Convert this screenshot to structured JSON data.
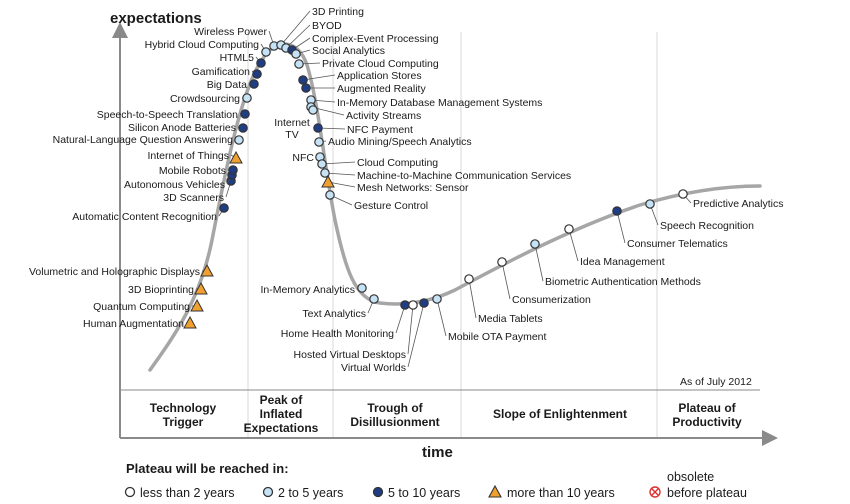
{
  "chart_data": {
    "type": "hype-cycle",
    "ylabel": "expectations",
    "xlabel": "time",
    "as_of": "As of July 2012",
    "phases": [
      "Technology Trigger",
      "Peak of Inflated Expectations",
      "Trough of Disillusionment",
      "Slope of Enlightenment",
      "Plateau of Productivity"
    ],
    "legend": {
      "title": "Plateau will be reached in:",
      "items": [
        {
          "key": "lt2",
          "label": "less than 2 years"
        },
        {
          "key": "2to5",
          "label": "2 to 5 years"
        },
        {
          "key": "5to10",
          "label": "5 to 10 years"
        },
        {
          "key": "gt10",
          "label": "more than 10 years"
        },
        {
          "key": "obsolete",
          "label_top": "obsolete",
          "label_bottom": "before plateau"
        }
      ]
    },
    "colors": {
      "curve": "#a6a6a6",
      "lt2": "#ffffff",
      "2to5": "#c6e2f5",
      "5to10": "#1f3d82",
      "gt10": "#f0a030",
      "obsolete": "#e03030",
      "grid": "#d9d9d9"
    },
    "technologies": [
      {
        "name": "Human Augmentation",
        "cat": "gt10"
      },
      {
        "name": "Quantum Computing",
        "cat": "gt10"
      },
      {
        "name": "3D Bioprinting",
        "cat": "gt10"
      },
      {
        "name": "Volumetric and Holographic Displays",
        "cat": "gt10"
      },
      {
        "name": "Automatic Content Recognition",
        "cat": "5to10"
      },
      {
        "name": "3D Scanners",
        "cat": "5to10"
      },
      {
        "name": "Autonomous Vehicles",
        "cat": "5to10"
      },
      {
        "name": "Mobile Robots",
        "cat": "5to10"
      },
      {
        "name": "Internet of Things",
        "cat": "gt10"
      },
      {
        "name": "Natural-Language Question Answering",
        "cat": "2to5"
      },
      {
        "name": "Silicon Anode Batteries",
        "cat": "5to10"
      },
      {
        "name": "Speech-to-Speech Translation",
        "cat": "5to10"
      },
      {
        "name": "Crowdsourcing",
        "cat": "2to5"
      },
      {
        "name": "Big Data",
        "cat": "5to10"
      },
      {
        "name": "Gamification",
        "cat": "5to10"
      },
      {
        "name": "HTML5",
        "cat": "5to10"
      },
      {
        "name": "Hybrid Cloud Computing",
        "cat": "2to5"
      },
      {
        "name": "Wireless Power",
        "cat": "2to5"
      },
      {
        "name": "3D Printing",
        "cat": "2to5"
      },
      {
        "name": "BYOD",
        "cat": "2to5"
      },
      {
        "name": "Complex-Event Processing",
        "cat": "5to10"
      },
      {
        "name": "Social Analytics",
        "cat": "2to5"
      },
      {
        "name": "Private Cloud Computing",
        "cat": "2to5"
      },
      {
        "name": "Application Stores",
        "cat": "5to10"
      },
      {
        "name": "Augmented Reality",
        "cat": "5to10"
      },
      {
        "name": "In-Memory Database Management Systems",
        "cat": "2to5"
      },
      {
        "name": "Activity Streams",
        "cat": "2to5"
      },
      {
        "name": "Internet TV",
        "cat": "2to5"
      },
      {
        "name": "NFC Payment",
        "cat": "5to10"
      },
      {
        "name": "Audio Mining/Speech Analytics",
        "cat": "2to5"
      },
      {
        "name": "NFC",
        "cat": "2to5"
      },
      {
        "name": "Cloud Computing",
        "cat": "2to5"
      },
      {
        "name": "Machine-to-Machine Communication Services",
        "cat": "2to5"
      },
      {
        "name": "Mesh Networks: Sensor",
        "cat": "gt10"
      },
      {
        "name": "Gesture Control",
        "cat": "2to5"
      },
      {
        "name": "In-Memory Analytics",
        "cat": "2to5"
      },
      {
        "name": "Text Analytics",
        "cat": "2to5"
      },
      {
        "name": "Home Health Monitoring",
        "cat": "5to10"
      },
      {
        "name": "Hosted Virtual Desktops",
        "cat": "lt2"
      },
      {
        "name": "Virtual Worlds",
        "cat": "5to10"
      },
      {
        "name": "Mobile OTA Payment",
        "cat": "2to5"
      },
      {
        "name": "Media Tablets",
        "cat": "lt2"
      },
      {
        "name": "Consumerization",
        "cat": "lt2"
      },
      {
        "name": "Biometric Authentication Methods",
        "cat": "2to5"
      },
      {
        "name": "Idea Management",
        "cat": "lt2"
      },
      {
        "name": "Consumer Telematics",
        "cat": "5to10"
      },
      {
        "name": "Speech Recognition",
        "cat": "2to5"
      },
      {
        "name": "Predictive Analytics",
        "cat": "lt2"
      }
    ]
  }
}
